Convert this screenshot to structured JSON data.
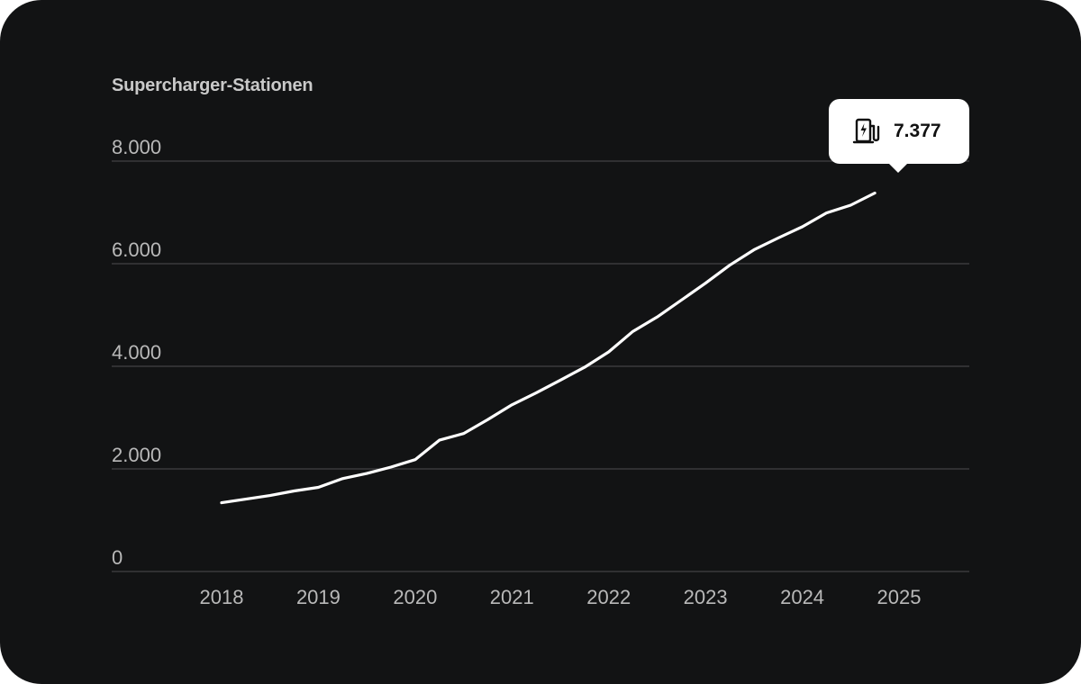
{
  "chart_data": {
    "type": "line",
    "title": "Supercharger-Stationen",
    "xlabel": "",
    "ylabel": "",
    "ylim": [
      0,
      8000
    ],
    "xlim": [
      2018,
      2025
    ],
    "y_ticks": [
      0,
      2000,
      4000,
      6000,
      8000
    ],
    "y_tick_labels": [
      "0",
      "2.000",
      "4.000",
      "6.000",
      "8.000"
    ],
    "x_ticks": [
      2018,
      2019,
      2020,
      2021,
      2022,
      2023,
      2024,
      2025
    ],
    "x_tick_labels": [
      "2018",
      "2019",
      "2020",
      "2021",
      "2022",
      "2023",
      "2024",
      "2025"
    ],
    "grid": true,
    "series": [
      {
        "color": "#ffffff",
        "points": [
          [
            2018.0,
            1340
          ],
          [
            2018.25,
            1410
          ],
          [
            2018.5,
            1480
          ],
          [
            2018.75,
            1570
          ],
          [
            2019.0,
            1640
          ],
          [
            2019.25,
            1810
          ],
          [
            2019.5,
            1910
          ],
          [
            2019.75,
            2035
          ],
          [
            2020.0,
            2180
          ],
          [
            2020.25,
            2560
          ],
          [
            2020.5,
            2690
          ],
          [
            2020.75,
            2960
          ],
          [
            2021.0,
            3250
          ],
          [
            2021.25,
            3480
          ],
          [
            2021.5,
            3730
          ],
          [
            2021.75,
            3980
          ],
          [
            2022.0,
            4280
          ],
          [
            2022.25,
            4680
          ],
          [
            2022.5,
            4960
          ],
          [
            2022.75,
            5290
          ],
          [
            2023.0,
            5620
          ],
          [
            2023.25,
            5970
          ],
          [
            2023.5,
            6270
          ],
          [
            2023.75,
            6500
          ],
          [
            2024.0,
            6720
          ],
          [
            2024.25,
            6990
          ],
          [
            2024.5,
            7140
          ],
          [
            2024.75,
            7377
          ]
        ]
      }
    ],
    "annotation": {
      "icon": "ev-charger-icon",
      "value_label": "7.377",
      "x": 2024.75,
      "y": 7377
    }
  }
}
